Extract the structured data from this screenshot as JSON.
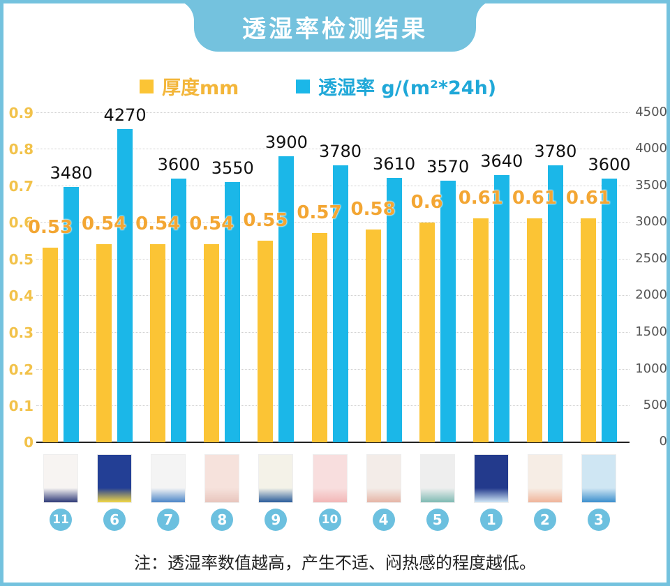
{
  "title": "透湿率检测结果",
  "legend": {
    "thickness": {
      "label": "厚度mm",
      "color": "#fbc435",
      "text_color": "#f3b63a"
    },
    "permeability": {
      "label": "透湿率 g/(m²*24h)",
      "color": "#1bb7e8",
      "text_color": "#20a8d8"
    }
  },
  "note": "注：透湿率数值越高，产生不适、闷热感的程度越低。",
  "chart_data": {
    "type": "bar",
    "title": "透湿率检测结果",
    "categories": [
      "11",
      "6",
      "7",
      "8",
      "9",
      "10",
      "4",
      "5",
      "1",
      "2",
      "3"
    ],
    "series": [
      {
        "name": "厚度mm",
        "axis": "left",
        "color": "#fbc435",
        "values": [
          0.53,
          0.54,
          0.54,
          0.54,
          0.55,
          0.57,
          0.58,
          0.6,
          0.61,
          0.61,
          0.61
        ]
      },
      {
        "name": "透湿率 g/(m²*24h)",
        "axis": "right",
        "color": "#1bb7e8",
        "values": [
          3480,
          4270,
          3600,
          3550,
          3900,
          3780,
          3610,
          3570,
          3640,
          3780,
          3600
        ]
      }
    ],
    "y_left": {
      "ticks": [
        "0",
        "0.1",
        "0.2",
        "0.3",
        "0.4",
        "0.5",
        "0.6",
        "0.7",
        "0.8",
        "0.9"
      ],
      "range": [
        0,
        0.9
      ]
    },
    "y_right": {
      "ticks": [
        "0",
        "500",
        "1000",
        "1500",
        "2000",
        "2500",
        "3000",
        "3500",
        "4000",
        "4500"
      ],
      "range": [
        0,
        4500
      ]
    },
    "xlabel": "",
    "ylabel_left": "厚度mm",
    "ylabel_right": "透湿率 g/(m²*24h)",
    "grid": true,
    "legend_position": "top"
  },
  "labels": {
    "thickness": [
      "0.53",
      "0.54",
      "0.54",
      "0.54",
      "0.55",
      "0.57",
      "0.58",
      "0.6",
      "0.61",
      "0.61",
      "0.61"
    ],
    "permeability": [
      "3480",
      "4270",
      "3600",
      "3550",
      "3900",
      "3780",
      "3610",
      "3570",
      "3640",
      "3780",
      "3600"
    ],
    "badges": [
      "11",
      "6",
      "7",
      "8",
      "9",
      "10",
      "4",
      "5",
      "1",
      "2",
      "3"
    ]
  },
  "thumbs": [
    {
      "bg": "#f7f4f2",
      "accent": "#2e3a78"
    },
    {
      "bg": "#233f95",
      "accent": "#f2d846"
    },
    {
      "bg": "#f4f4f4",
      "accent": "#4c86c8"
    },
    {
      "bg": "#f6e2dc",
      "accent": "#e8c5bd"
    },
    {
      "bg": "#f4f2e8",
      "accent": "#2a5c9a"
    },
    {
      "bg": "#f8dede",
      "accent": "#f2b6b6"
    },
    {
      "bg": "#f3ece8",
      "accent": "#e6b5a6"
    },
    {
      "bg": "#eeeeee",
      "accent": "#7fbab3"
    },
    {
      "bg": "#233a8c",
      "accent": "#cfe6f6"
    },
    {
      "bg": "#f6ede5",
      "accent": "#f0b49a"
    },
    {
      "bg": "#cfe6f3",
      "accent": "#3c8fcd"
    }
  ]
}
